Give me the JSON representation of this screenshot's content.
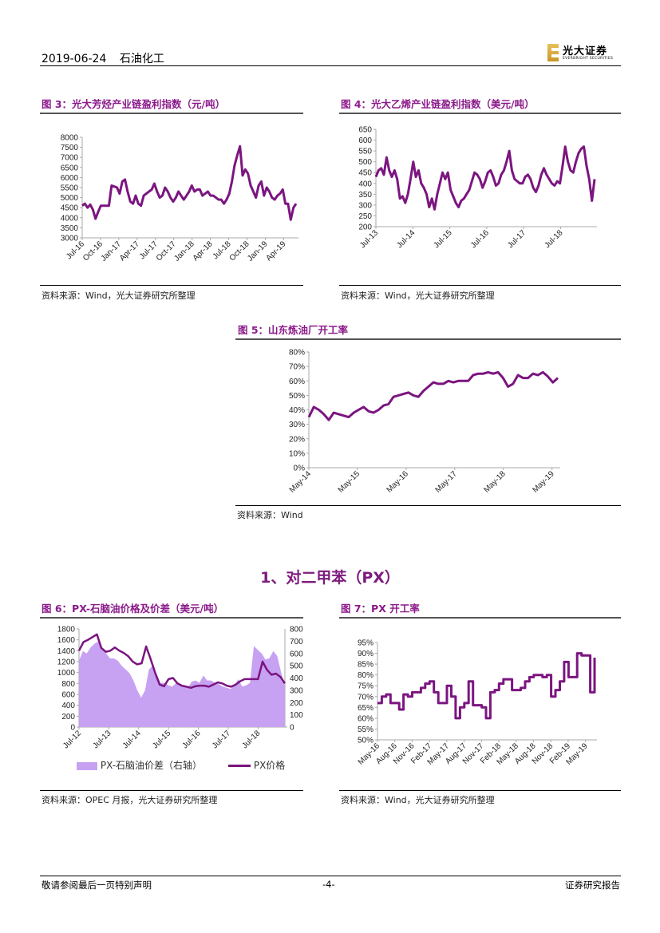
{
  "header": {
    "date": "2019-06-24",
    "sector": "石油化工",
    "logo_cn": "光大证券",
    "logo_en": "EVERBRIGHT SECURITIES"
  },
  "colors": {
    "accent": "#8b1a8b",
    "line": "#7b1580",
    "area": "#c7a1f2"
  },
  "section_heading": "1、对二甲苯（PX）",
  "footer": {
    "left": "敬请参阅最后一页特别声明",
    "center": "-4-",
    "right": "证券研究报告"
  },
  "figures": [
    {
      "title": "图 3：光大芳烃产业链盈利指数（元/吨）",
      "source": "资料来源：Wind，光大证券研究所整理",
      "chart_data": {
        "type": "line",
        "x_range": [
          2016.5,
          2019.42
        ],
        "ylim": [
          3000,
          8000
        ],
        "y_ticks": [
          "3000",
          "3500",
          "4000",
          "4500",
          "5000",
          "5500",
          "6000",
          "6500",
          "7000",
          "7500",
          "8000"
        ],
        "x_ticks": [
          {
            "label": "Jul-16",
            "x": 2016.5
          },
          {
            "label": "Oct-16",
            "x": 2016.75
          },
          {
            "label": "Jan-17",
            "x": 2017.0
          },
          {
            "label": "Apr-17",
            "x": 2017.25
          },
          {
            "label": "Jul-17",
            "x": 2017.5
          },
          {
            "label": "Oct-17",
            "x": 2017.75
          },
          {
            "label": "Jan-18",
            "x": 2018.0
          },
          {
            "label": "Apr-18",
            "x": 2018.25
          },
          {
            "label": "Jul-18",
            "x": 2018.5
          },
          {
            "label": "Oct-18",
            "x": 2018.75
          },
          {
            "label": "Jan-19",
            "x": 2019.0
          },
          {
            "label": "Apr-19",
            "x": 2019.25
          }
        ],
        "series": [
          {
            "name": "光大芳烃产业链盈利指数",
            "kind": "line",
            "axis": "left",
            "values": [
              4600,
              4700,
              4500,
              4650,
              4400,
              3950,
              4300,
              4600,
              4600,
              4600,
              4600,
              5600,
              5550,
              5500,
              5200,
              5800,
              5900,
              5300,
              4800,
              4700,
              5100,
              4700,
              4600,
              5100,
              5200,
              5300,
              5400,
              5700,
              5300,
              5000,
              5100,
              5500,
              5300,
              5000,
              4800,
              5000,
              5300,
              5100,
              4900,
              5100,
              5300,
              5600,
              5300,
              5400,
              5400,
              5100,
              5200,
              5300,
              5100,
              5100,
              5000,
              4900,
              4900,
              4700,
              4900,
              5200,
              5800,
              6600,
              7100,
              7550,
              6100,
              6400,
              6200,
              5600,
              5300,
              5000,
              5600,
              5800,
              5100,
              5500,
              5300,
              5000,
              4900,
              5100,
              5200,
              5400,
              4700,
              4700,
              3900,
              4500,
              4700
            ]
          }
        ]
      }
    },
    {
      "title": "图 4：光大乙烯产业链盈利指数（美元/吨）",
      "source": "资料来源：Wind，光大证券研究所整理",
      "chart_data": {
        "type": "line",
        "x_range": [
          2013.5,
          2019.42
        ],
        "ylim": [
          200,
          650
        ],
        "y_ticks": [
          "200",
          "250",
          "300",
          "350",
          "400",
          "450",
          "500",
          "550",
          "600",
          "650"
        ],
        "x_ticks": [
          {
            "label": "Jul-13",
            "x": 2013.5
          },
          {
            "label": "Jul-14",
            "x": 2014.5
          },
          {
            "label": "Jul-15",
            "x": 2015.5
          },
          {
            "label": "Jul-16",
            "x": 2016.5
          },
          {
            "label": "Jul-17",
            "x": 2017.5
          },
          {
            "label": "Jul-18",
            "x": 2018.5
          }
        ],
        "series": [
          {
            "name": "光大乙烯产业链盈利指数",
            "kind": "line",
            "axis": "left",
            "values": [
              430,
              460,
              470,
              440,
              520,
              460,
              430,
              460,
              420,
              330,
              340,
              310,
              350,
              420,
              500,
              430,
              460,
              400,
              380,
              350,
              290,
              330,
              280,
              350,
              400,
              450,
              420,
              450,
              370,
              340,
              310,
              290,
              320,
              330,
              350,
              370,
              410,
              450,
              440,
              420,
              380,
              410,
              450,
              460,
              430,
              390,
              400,
              440,
              460,
              500,
              550,
              460,
              420,
              410,
              400,
              400,
              430,
              440,
              420,
              380,
              360,
              390,
              440,
              470,
              440,
              420,
              400,
              390,
              410,
              400,
              480,
              570,
              500,
              460,
              450,
              500,
              540,
              560,
              570,
              480,
              420,
              320,
              420
            ]
          }
        ]
      }
    },
    {
      "title": "图 5：山东炼油厂开工率",
      "source": "资料来源：Wind",
      "chart_data": {
        "type": "line",
        "x_range": [
          2014.33,
          2019.45
        ],
        "ylim": [
          0,
          80
        ],
        "y_ticks": [
          "0%",
          "10%",
          "20%",
          "30%",
          "40%",
          "50%",
          "60%",
          "70%",
          "80%"
        ],
        "x_ticks": [
          {
            "label": "May-14",
            "x": 2014.33
          },
          {
            "label": "May-15",
            "x": 2015.33
          },
          {
            "label": "May-16",
            "x": 2016.33
          },
          {
            "label": "May-17",
            "x": 2017.33
          },
          {
            "label": "May-18",
            "x": 2018.33
          },
          {
            "label": "May-19",
            "x": 2019.33
          }
        ],
        "series": [
          {
            "name": "山东炼油厂开工率",
            "kind": "line",
            "axis": "left",
            "values": [
              35,
              42,
              40,
              37,
              33,
              38,
              37,
              36,
              35,
              38,
              40,
              42,
              39,
              38,
              40,
              43,
              44,
              49,
              50,
              51,
              52,
              50,
              49,
              53,
              56,
              59,
              58,
              58,
              60,
              59,
              60,
              60,
              60,
              64,
              65,
              65,
              66,
              65,
              66,
              62,
              56,
              58,
              64,
              62,
              62,
              65,
              64,
              66,
              63,
              59,
              62
            ]
          }
        ]
      }
    },
    {
      "title": "图 6：PX-石脑油价格及价差（美元/吨）",
      "source": "资料来源：OPEC 月报，光大证券研究所整理",
      "chart_data": {
        "type": "line",
        "x_range": [
          2012.5,
          2019.4
        ],
        "ylim": [
          0,
          1800
        ],
        "ylim_right": [
          0,
          800
        ],
        "y_ticks": [
          "0",
          "200",
          "400",
          "600",
          "800",
          "1000",
          "1200",
          "1400",
          "1600",
          "1800"
        ],
        "y_ticks_right": [
          "0",
          "100",
          "200",
          "300",
          "400",
          "500",
          "600",
          "700",
          "800"
        ],
        "x_ticks": [
          {
            "label": "Jul-12",
            "x": 2012.5
          },
          {
            "label": "Jul-13",
            "x": 2013.5
          },
          {
            "label": "Jul-14",
            "x": 2014.5
          },
          {
            "label": "Jul-15",
            "x": 2015.5
          },
          {
            "label": "Jul-16",
            "x": 2016.5
          },
          {
            "label": "Jul-17",
            "x": 2017.5
          },
          {
            "label": "Jul-18",
            "x": 2018.5
          }
        ],
        "legend": [
          "PX-石脑油价差（右轴）",
          "PX价格"
        ],
        "legend_position": "bottom",
        "series": [
          {
            "name": "PX-石脑油价差（右轴）",
            "kind": "area",
            "axis": "right",
            "values": [
              540,
              620,
              600,
              650,
              680,
              700,
              640,
              600,
              560,
              560,
              540,
              500,
              470,
              440,
              380,
              300,
              240,
              300,
              470,
              500,
              430,
              360,
              360,
              340,
              330,
              360,
              340,
              330,
              320,
              370,
              380,
              360,
              420,
              380,
              380,
              360,
              350,
              330,
              320,
              310,
              340,
              390,
              330,
              340,
              360,
              660,
              630,
              600,
              550,
              560,
              620,
              580,
              450,
              330
            ]
          },
          {
            "name": "PX价格",
            "kind": "line",
            "axis": "left",
            "values": [
              1400,
              1560,
              1600,
              1650,
              1700,
              1450,
              1380,
              1400,
              1460,
              1400,
              1360,
              1300,
              1200,
              1150,
              1170,
              1480,
              1250,
              1000,
              780,
              750,
              880,
              900,
              800,
              760,
              740,
              720,
              750,
              760,
              760,
              740,
              780,
              820,
              800,
              760,
              740,
              780,
              840,
              880,
              880,
              880,
              880,
              1200,
              1050,
              960,
              980,
              920,
              800
            ]
          }
        ]
      }
    },
    {
      "title": "图 7：PX 开工率",
      "source": "资料来源：Wind，光大证券研究所整理",
      "chart_data": {
        "type": "line",
        "x_range": [
          2016.33,
          2019.46
        ],
        "ylim": [
          50,
          95
        ],
        "y_ticks": [
          "50%",
          "55%",
          "60%",
          "65%",
          "70%",
          "75%",
          "80%",
          "85%",
          "90%",
          "95%"
        ],
        "x_ticks": [
          {
            "label": "May-16",
            "x": 2016.33
          },
          {
            "label": "Aug-16",
            "x": 2016.58
          },
          {
            "label": "Nov-16",
            "x": 2016.83
          },
          {
            "label": "Feb-17",
            "x": 2017.08
          },
          {
            "label": "May-17",
            "x": 2017.33
          },
          {
            "label": "Aug-17",
            "x": 2017.58
          },
          {
            "label": "Nov-17",
            "x": 2017.83
          },
          {
            "label": "Feb-18",
            "x": 2018.08
          },
          {
            "label": "May-18",
            "x": 2018.33
          },
          {
            "label": "Aug-18",
            "x": 2018.58
          },
          {
            "label": "Nov-18",
            "x": 2018.83
          },
          {
            "label": "Feb-19",
            "x": 2019.08
          },
          {
            "label": "May-19",
            "x": 2019.33
          }
        ],
        "series": [
          {
            "name": "PX开工率",
            "kind": "step",
            "axis": "left",
            "values": [
              67,
              70,
              71,
              67,
              67,
              64,
              71,
              70,
              72,
              72,
              74,
              76,
              77,
              72,
              67,
              67,
              75,
              70,
              60,
              65,
              67,
              77,
              66,
              66,
              65,
              60,
              72,
              73,
              76,
              78,
              78,
              73,
              73,
              74,
              77,
              79,
              80,
              80,
              79,
              80,
              70,
              73,
              77,
              86,
              79,
              79,
              90,
              89,
              89,
              72,
              88
            ]
          }
        ]
      }
    }
  ]
}
